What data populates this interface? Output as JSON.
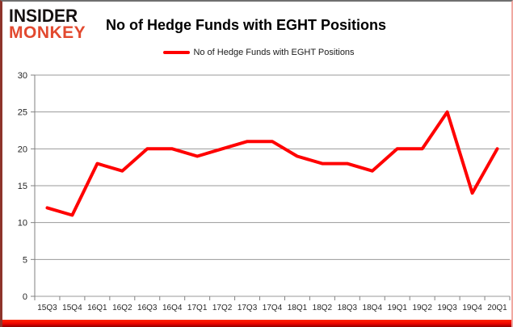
{
  "logo": {
    "line1": "INSIDER",
    "line2": "MONKEY"
  },
  "title": "No of Hedge Funds with EGHT Positions",
  "legend": {
    "label": "No of Hedge Funds with EGHT Positions"
  },
  "colors": {
    "line": "#FF0000",
    "logo_accent": "#E2492F",
    "grid": "#999999",
    "axis": "#808080",
    "axis_text": "#262626",
    "bottom_bar": "#FF0000"
  },
  "chart_data": {
    "type": "line",
    "title": "No of Hedge Funds with EGHT Positions",
    "categories": [
      "15Q3",
      "15Q4",
      "16Q1",
      "16Q2",
      "16Q3",
      "16Q4",
      "17Q1",
      "17Q2",
      "17Q3",
      "17Q4",
      "18Q1",
      "18Q2",
      "18Q3",
      "18Q4",
      "19Q1",
      "19Q2",
      "19Q3",
      "19Q4",
      "20Q1"
    ],
    "series": [
      {
        "name": "No of Hedge Funds with EGHT Positions",
        "values": [
          12,
          11,
          18,
          17,
          20,
          20,
          19,
          20,
          21,
          21,
          19,
          18,
          18,
          17,
          20,
          20,
          25,
          14,
          20
        ]
      }
    ],
    "xlabel": "",
    "ylabel": "",
    "ylim": [
      0,
      30
    ],
    "yticks": [
      0,
      5,
      10,
      15,
      20,
      25,
      30
    ],
    "grid": true,
    "legend_position": "top-center"
  }
}
